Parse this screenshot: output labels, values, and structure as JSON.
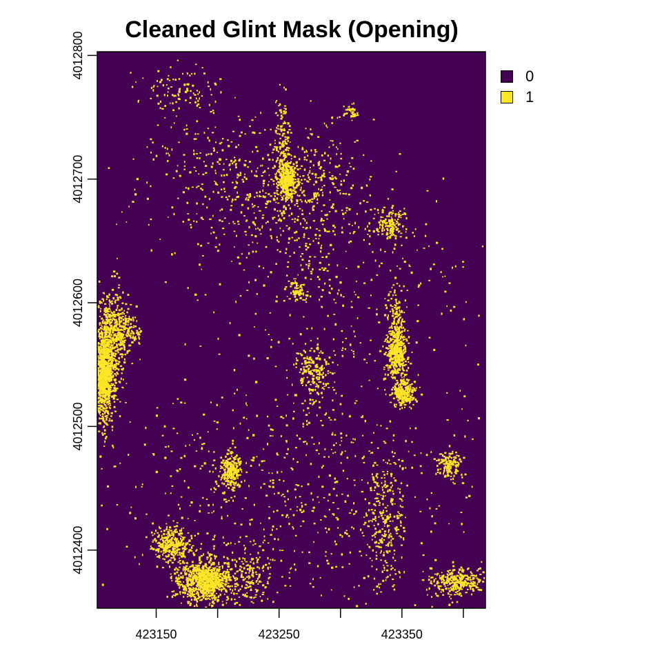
{
  "chart_data": {
    "type": "heatmap",
    "title": "Cleaned Glint Mask (Opening)",
    "xlabel": "",
    "ylabel": "",
    "xlim": [
      423102,
      423418
    ],
    "ylim": [
      4012353,
      4012803
    ],
    "x_ticks": [
      423150,
      423200,
      423250,
      423300,
      423350,
      423400
    ],
    "x_tick_labels": [
      "423150",
      "",
      "423250",
      "",
      "423350",
      ""
    ],
    "y_ticks": [
      4012400,
      4012500,
      4012600,
      4012700,
      4012800
    ],
    "y_tick_labels": [
      "4012400",
      "4012500",
      "4012600",
      "4012700",
      "4012800"
    ],
    "legend": {
      "position": "right",
      "entries": [
        {
          "label": "0",
          "color": "#440154"
        },
        {
          "label": "1",
          "color": "#FDE725"
        }
      ]
    },
    "background_value": 0,
    "mask_value": 1,
    "glint_clusters": [
      {
        "x": 423256,
        "y": 4012700,
        "rx": 7,
        "ry": 14,
        "density": 0.8
      },
      {
        "x": 423252,
        "y": 4012725,
        "rx": 6,
        "ry": 40,
        "density": 0.15
      },
      {
        "x": 423106,
        "y": 4012540,
        "rx": 8,
        "ry": 35,
        "density": 0.75
      },
      {
        "x": 423112,
        "y": 4012570,
        "rx": 12,
        "ry": 40,
        "density": 0.25
      },
      {
        "x": 423125,
        "y": 4012578,
        "rx": 10,
        "ry": 15,
        "density": 0.2
      },
      {
        "x": 423345,
        "y": 4012560,
        "rx": 8,
        "ry": 20,
        "density": 0.55
      },
      {
        "x": 423351,
        "y": 4012528,
        "rx": 8,
        "ry": 10,
        "density": 0.65
      },
      {
        "x": 423345,
        "y": 4012585,
        "rx": 6,
        "ry": 22,
        "density": 0.2
      },
      {
        "x": 423210,
        "y": 4012465,
        "rx": 8,
        "ry": 14,
        "density": 0.5
      },
      {
        "x": 423188,
        "y": 4012375,
        "rx": 20,
        "ry": 15,
        "density": 0.65
      },
      {
        "x": 423162,
        "y": 4012405,
        "rx": 14,
        "ry": 14,
        "density": 0.35
      },
      {
        "x": 423225,
        "y": 4012380,
        "rx": 15,
        "ry": 22,
        "density": 0.1
      },
      {
        "x": 423278,
        "y": 4012545,
        "rx": 14,
        "ry": 28,
        "density": 0.12
      },
      {
        "x": 423264,
        "y": 4012610,
        "rx": 6,
        "ry": 8,
        "density": 0.3
      },
      {
        "x": 423388,
        "y": 4012470,
        "rx": 8,
        "ry": 10,
        "density": 0.35
      },
      {
        "x": 423393,
        "y": 4012375,
        "rx": 20,
        "ry": 10,
        "density": 0.35
      },
      {
        "x": 423335,
        "y": 4012425,
        "rx": 15,
        "ry": 50,
        "density": 0.08
      },
      {
        "x": 423271,
        "y": 4012690,
        "rx": 50,
        "ry": 45,
        "density": 0.04
      },
      {
        "x": 423200,
        "y": 4012700,
        "rx": 60,
        "ry": 50,
        "density": 0.02
      },
      {
        "x": 423340,
        "y": 4012665,
        "rx": 12,
        "ry": 10,
        "density": 0.25
      },
      {
        "x": 423308,
        "y": 4012755,
        "rx": 5,
        "ry": 5,
        "density": 0.3
      },
      {
        "x": 423170,
        "y": 4012770,
        "rx": 30,
        "ry": 25,
        "density": 0.03
      },
      {
        "x": 423260,
        "y": 4012450,
        "rx": 140,
        "ry": 90,
        "density": 0.012
      },
      {
        "x": 423300,
        "y": 4012620,
        "rx": 100,
        "ry": 60,
        "density": 0.01
      }
    ]
  }
}
